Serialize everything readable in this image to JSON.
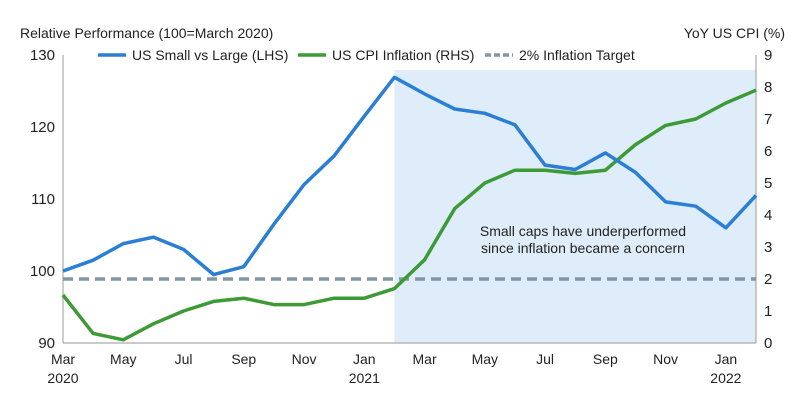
{
  "chart_data": {
    "type": "line",
    "ylabel_left": "Relative Performance (100=March 2020)",
    "ylabel_right": "YoY US CPI (%)",
    "x": [
      "Mar 2020",
      "Apr 2020",
      "May 2020",
      "Jun 2020",
      "Jul 2020",
      "Aug 2020",
      "Sep 2020",
      "Oct 2020",
      "Nov 2020",
      "Dec 2020",
      "Jan 2021",
      "Feb 2021",
      "Mar 2021",
      "Apr 2021",
      "May 2021",
      "Jun 2021",
      "Jul 2021",
      "Aug 2021",
      "Sep 2021",
      "Oct 2021",
      "Nov 2021",
      "Dec 2021",
      "Jan 2022",
      "Feb 2022"
    ],
    "x_ticks": [
      {
        "label": "Mar",
        "year": "2020",
        "index": 0
      },
      {
        "label": "May",
        "year": "",
        "index": 2
      },
      {
        "label": "Jul",
        "year": "",
        "index": 4
      },
      {
        "label": "Sep",
        "year": "",
        "index": 6
      },
      {
        "label": "Nov",
        "year": "",
        "index": 8
      },
      {
        "label": "Jan",
        "year": "2021",
        "index": 10
      },
      {
        "label": "Mar",
        "year": "",
        "index": 12
      },
      {
        "label": "May",
        "year": "",
        "index": 14
      },
      {
        "label": "Jul",
        "year": "",
        "index": 16
      },
      {
        "label": "Sep",
        "year": "",
        "index": 18
      },
      {
        "label": "Nov",
        "year": "",
        "index": 20
      },
      {
        "label": "Jan",
        "year": "2022",
        "index": 22
      }
    ],
    "ylim_left": [
      90,
      130
    ],
    "yticks_left": [
      "90",
      "100",
      "110",
      "120",
      "130"
    ],
    "ylim_right": [
      0,
      9
    ],
    "yticks_right": [
      "0",
      "1",
      "2",
      "3",
      "4",
      "5",
      "6",
      "7",
      "8",
      "9"
    ],
    "grid": false,
    "legend_placement": "top",
    "series": [
      {
        "name": "US Small vs Large (LHS)",
        "axis": "left",
        "color": "#2a7fd4",
        "style": "solid",
        "values": [
          100,
          101.5,
          103.8,
          104.7,
          103,
          99.5,
          100.6,
          106.5,
          112,
          116,
          121.5,
          126.9,
          124.6,
          122.5,
          121.9,
          120.3,
          114.7,
          114.1,
          116.4,
          113.7,
          109.6,
          109,
          106,
          110.5
        ]
      },
      {
        "name": "US CPI Inflation (RHS)",
        "axis": "right",
        "color": "#3d9a37",
        "style": "solid",
        "values": [
          1.5,
          0.3,
          0.1,
          0.6,
          1.0,
          1.3,
          1.4,
          1.2,
          1.2,
          1.4,
          1.4,
          1.7,
          2.6,
          4.2,
          5.0,
          5.4,
          5.4,
          5.3,
          5.4,
          6.2,
          6.8,
          7.0,
          7.5,
          7.9
        ]
      },
      {
        "name": "2% Inflation Target",
        "axis": "right",
        "color": "#8496a6",
        "style": "dashed",
        "value": 2
      }
    ],
    "shaded_region": {
      "from": "Feb 2021",
      "to": "Feb 2022",
      "color": "#deedf9"
    },
    "annotation": [
      "Small caps have underperformed",
      "since inflation became a concern"
    ]
  }
}
